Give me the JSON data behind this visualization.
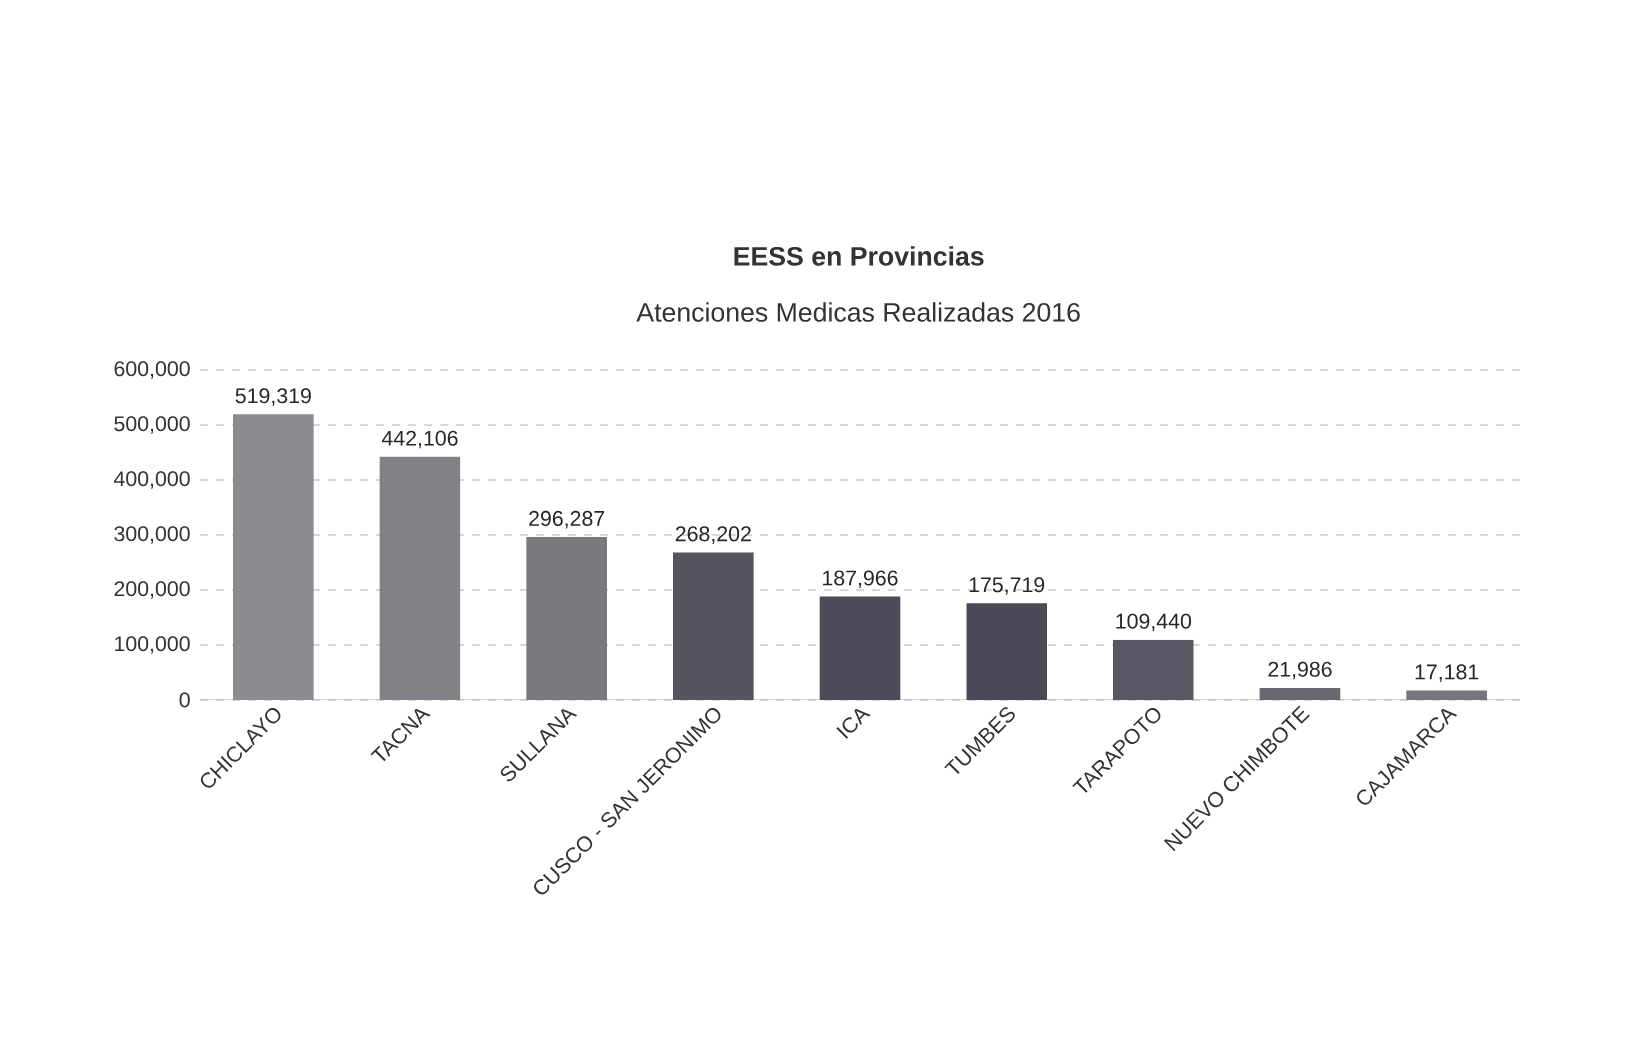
{
  "chart_data": {
    "type": "bar",
    "title": "EESS en Provincias",
    "subtitle": "Atenciones Medicas Realizadas 2016",
    "categories": [
      "CHICLAYO",
      "TACNA",
      "SULLANA",
      "CUSCO - SAN JERONIMO",
      "ICA",
      "TUMBES",
      "TARAPOTO",
      "NUEVO CHIMBOTE",
      "CAJAMARCA"
    ],
    "values": [
      519319,
      442106,
      296287,
      268202,
      187966,
      175719,
      109440,
      21986,
      17181
    ],
    "value_labels": [
      "519,319",
      "442,106",
      "296,287",
      "268,202",
      "187,966",
      "175,719",
      "109,440",
      "21,986",
      "17,181"
    ],
    "colors": [
      "#8c8b90",
      "#828187",
      "#7a7980",
      "#57535f",
      "#4e4a57",
      "#4c4855",
      "#5a5663",
      "#6b6771",
      "#77747c"
    ],
    "ylim": [
      0,
      600000
    ],
    "yticks": [
      0,
      {
        "value": 100000,
        "label": "100,000"
      },
      {
        "value": 200000,
        "label": "200,000"
      },
      {
        "value": 300000,
        "label": "300,000"
      },
      {
        "value": 400000,
        "label": "400,000"
      },
      {
        "value": 500000,
        "label": "500,000"
      },
      {
        "value": 600000,
        "label": "600,000"
      }
    ],
    "grid": "y"
  }
}
